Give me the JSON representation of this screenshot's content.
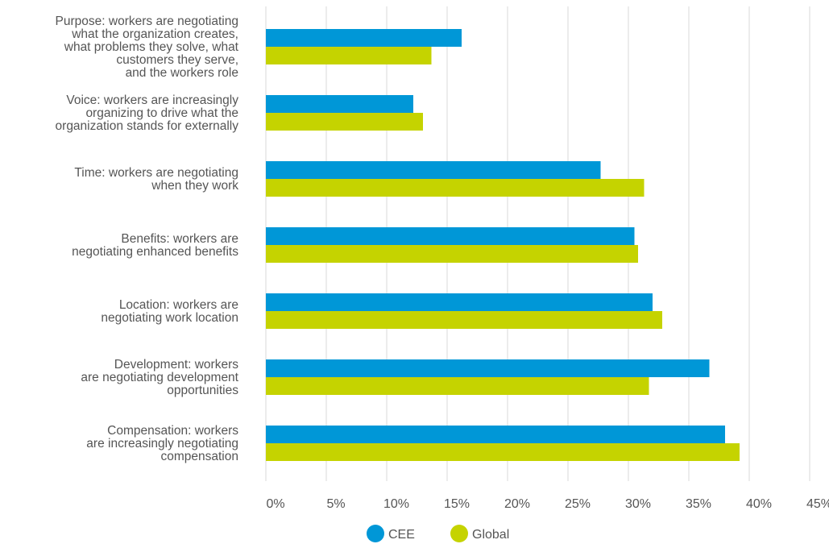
{
  "chart_data": {
    "type": "bar",
    "orientation": "horizontal",
    "categories": [
      [
        "Purpose: workers are negotiating",
        "what the organization creates,",
        "what problems they solve, what",
        "customers they serve,",
        "and the workers role"
      ],
      [
        "Voice: workers are increasingly",
        "organizing to drive what the",
        "organization stands for externally"
      ],
      [
        "Time: workers are negotiating",
        "when they work"
      ],
      [
        "Benefits: workers are",
        "negotiating enhanced benefits"
      ],
      [
        "Location: workers are",
        "negotiating work location"
      ],
      [
        "Development: workers",
        "are negotiating development",
        "opportunities"
      ],
      [
        "Compensation: workers",
        "are increasingly negotiating",
        "compensation"
      ]
    ],
    "series": [
      {
        "name": "CEE",
        "color": "#0097d7",
        "values": [
          16.2,
          12.2,
          27.7,
          30.5,
          32.0,
          36.7,
          38.0
        ]
      },
      {
        "name": "Global",
        "color": "#c5d300",
        "values": [
          13.7,
          13.0,
          31.3,
          30.8,
          32.8,
          31.7,
          39.2
        ]
      }
    ],
    "xlim": [
      0,
      45
    ],
    "xticks": [
      "0%",
      "5%",
      "10%",
      "15%",
      "20%",
      "25%",
      "30%",
      "35%",
      "40%",
      "45%"
    ],
    "xtick_values": [
      0,
      5,
      10,
      15,
      20,
      25,
      30,
      35,
      40,
      45
    ],
    "grid": true,
    "legend_position": "bottom-center",
    "title": "",
    "xlabel": "",
    "ylabel": ""
  }
}
